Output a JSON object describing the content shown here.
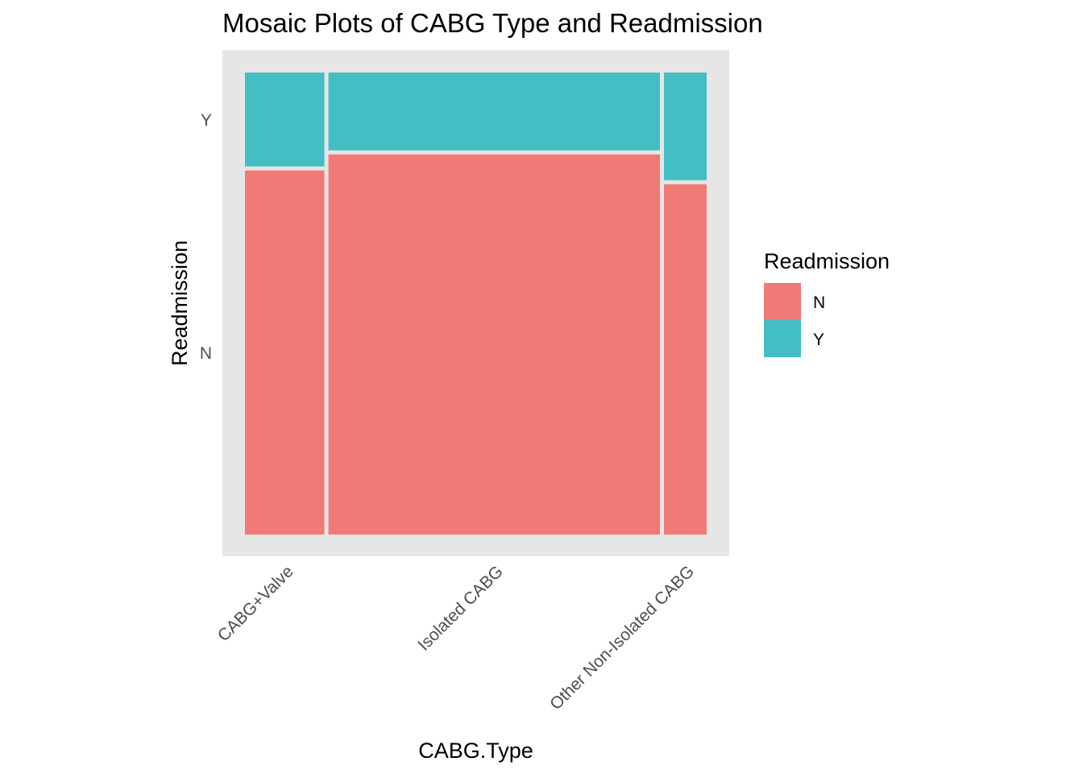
{
  "chart_data": {
    "type": "mosaic",
    "title": "Mosaic Plots of CABG Type and Readmission",
    "xlabel": "CABG.Type",
    "ylabel": "Readmission",
    "categories": [
      "CABG+Valve",
      "Isolated CABG",
      "Other Non-Isolated CABG"
    ],
    "category_share": [
      0.173,
      0.722,
      0.093
    ],
    "y_ticks": [
      "N",
      "Y"
    ],
    "series": [
      {
        "name": "N",
        "color": "#F27A76",
        "values": [
          0.795,
          0.83,
          0.765
        ]
      },
      {
        "name": "Y",
        "color": "#43BEC3",
        "values": [
          0.205,
          0.17,
          0.235
        ]
      }
    ],
    "legend": {
      "title": "Readmission",
      "position": "right",
      "entries": [
        "N",
        "Y"
      ]
    },
    "panel_background": "#E6E6E6",
    "grid": false
  }
}
